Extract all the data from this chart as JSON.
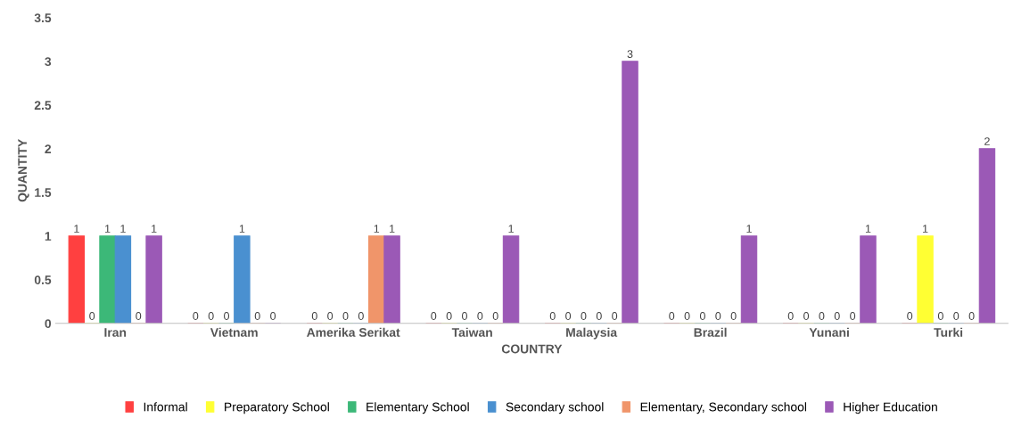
{
  "chart_data": {
    "type": "bar",
    "xlabel": "COUNTRY",
    "ylabel": "QUANTITY",
    "categories": [
      "Iran",
      "Vietnam",
      "Amerika Serikat",
      "Taiwan",
      "Malaysia",
      "Brazil",
      "Yunani",
      "Turki"
    ],
    "series": [
      {
        "name": "Informal",
        "color": "#ff4040",
        "values": [
          1,
          0,
          0,
          0,
          0,
          0,
          0,
          0
        ]
      },
      {
        "name": "Preparatory School",
        "color": "#ffff33",
        "values": [
          0,
          0,
          0,
          0,
          0,
          0,
          0,
          1
        ]
      },
      {
        "name": "Elementary School",
        "color": "#3cb878",
        "values": [
          1,
          0,
          0,
          0,
          0,
          0,
          0,
          0
        ]
      },
      {
        "name": "Secondary school",
        "color": "#4a90d0",
        "values": [
          1,
          1,
          0,
          0,
          0,
          0,
          0,
          0
        ]
      },
      {
        "name": "Elementary, Secondary school",
        "color": "#f0956a",
        "values": [
          0,
          0,
          1,
          0,
          0,
          0,
          0,
          0
        ]
      },
      {
        "name": "Higher Education",
        "color": "#9b59b6",
        "values": [
          1,
          0,
          1,
          1,
          3,
          1,
          1,
          2
        ]
      }
    ],
    "ylim": [
      0,
      3.5
    ],
    "yticks": [
      0,
      0.5,
      1,
      1.5,
      2,
      2.5,
      3,
      3.5
    ],
    "grid": false,
    "legend": "bottom",
    "data_labels": true
  }
}
